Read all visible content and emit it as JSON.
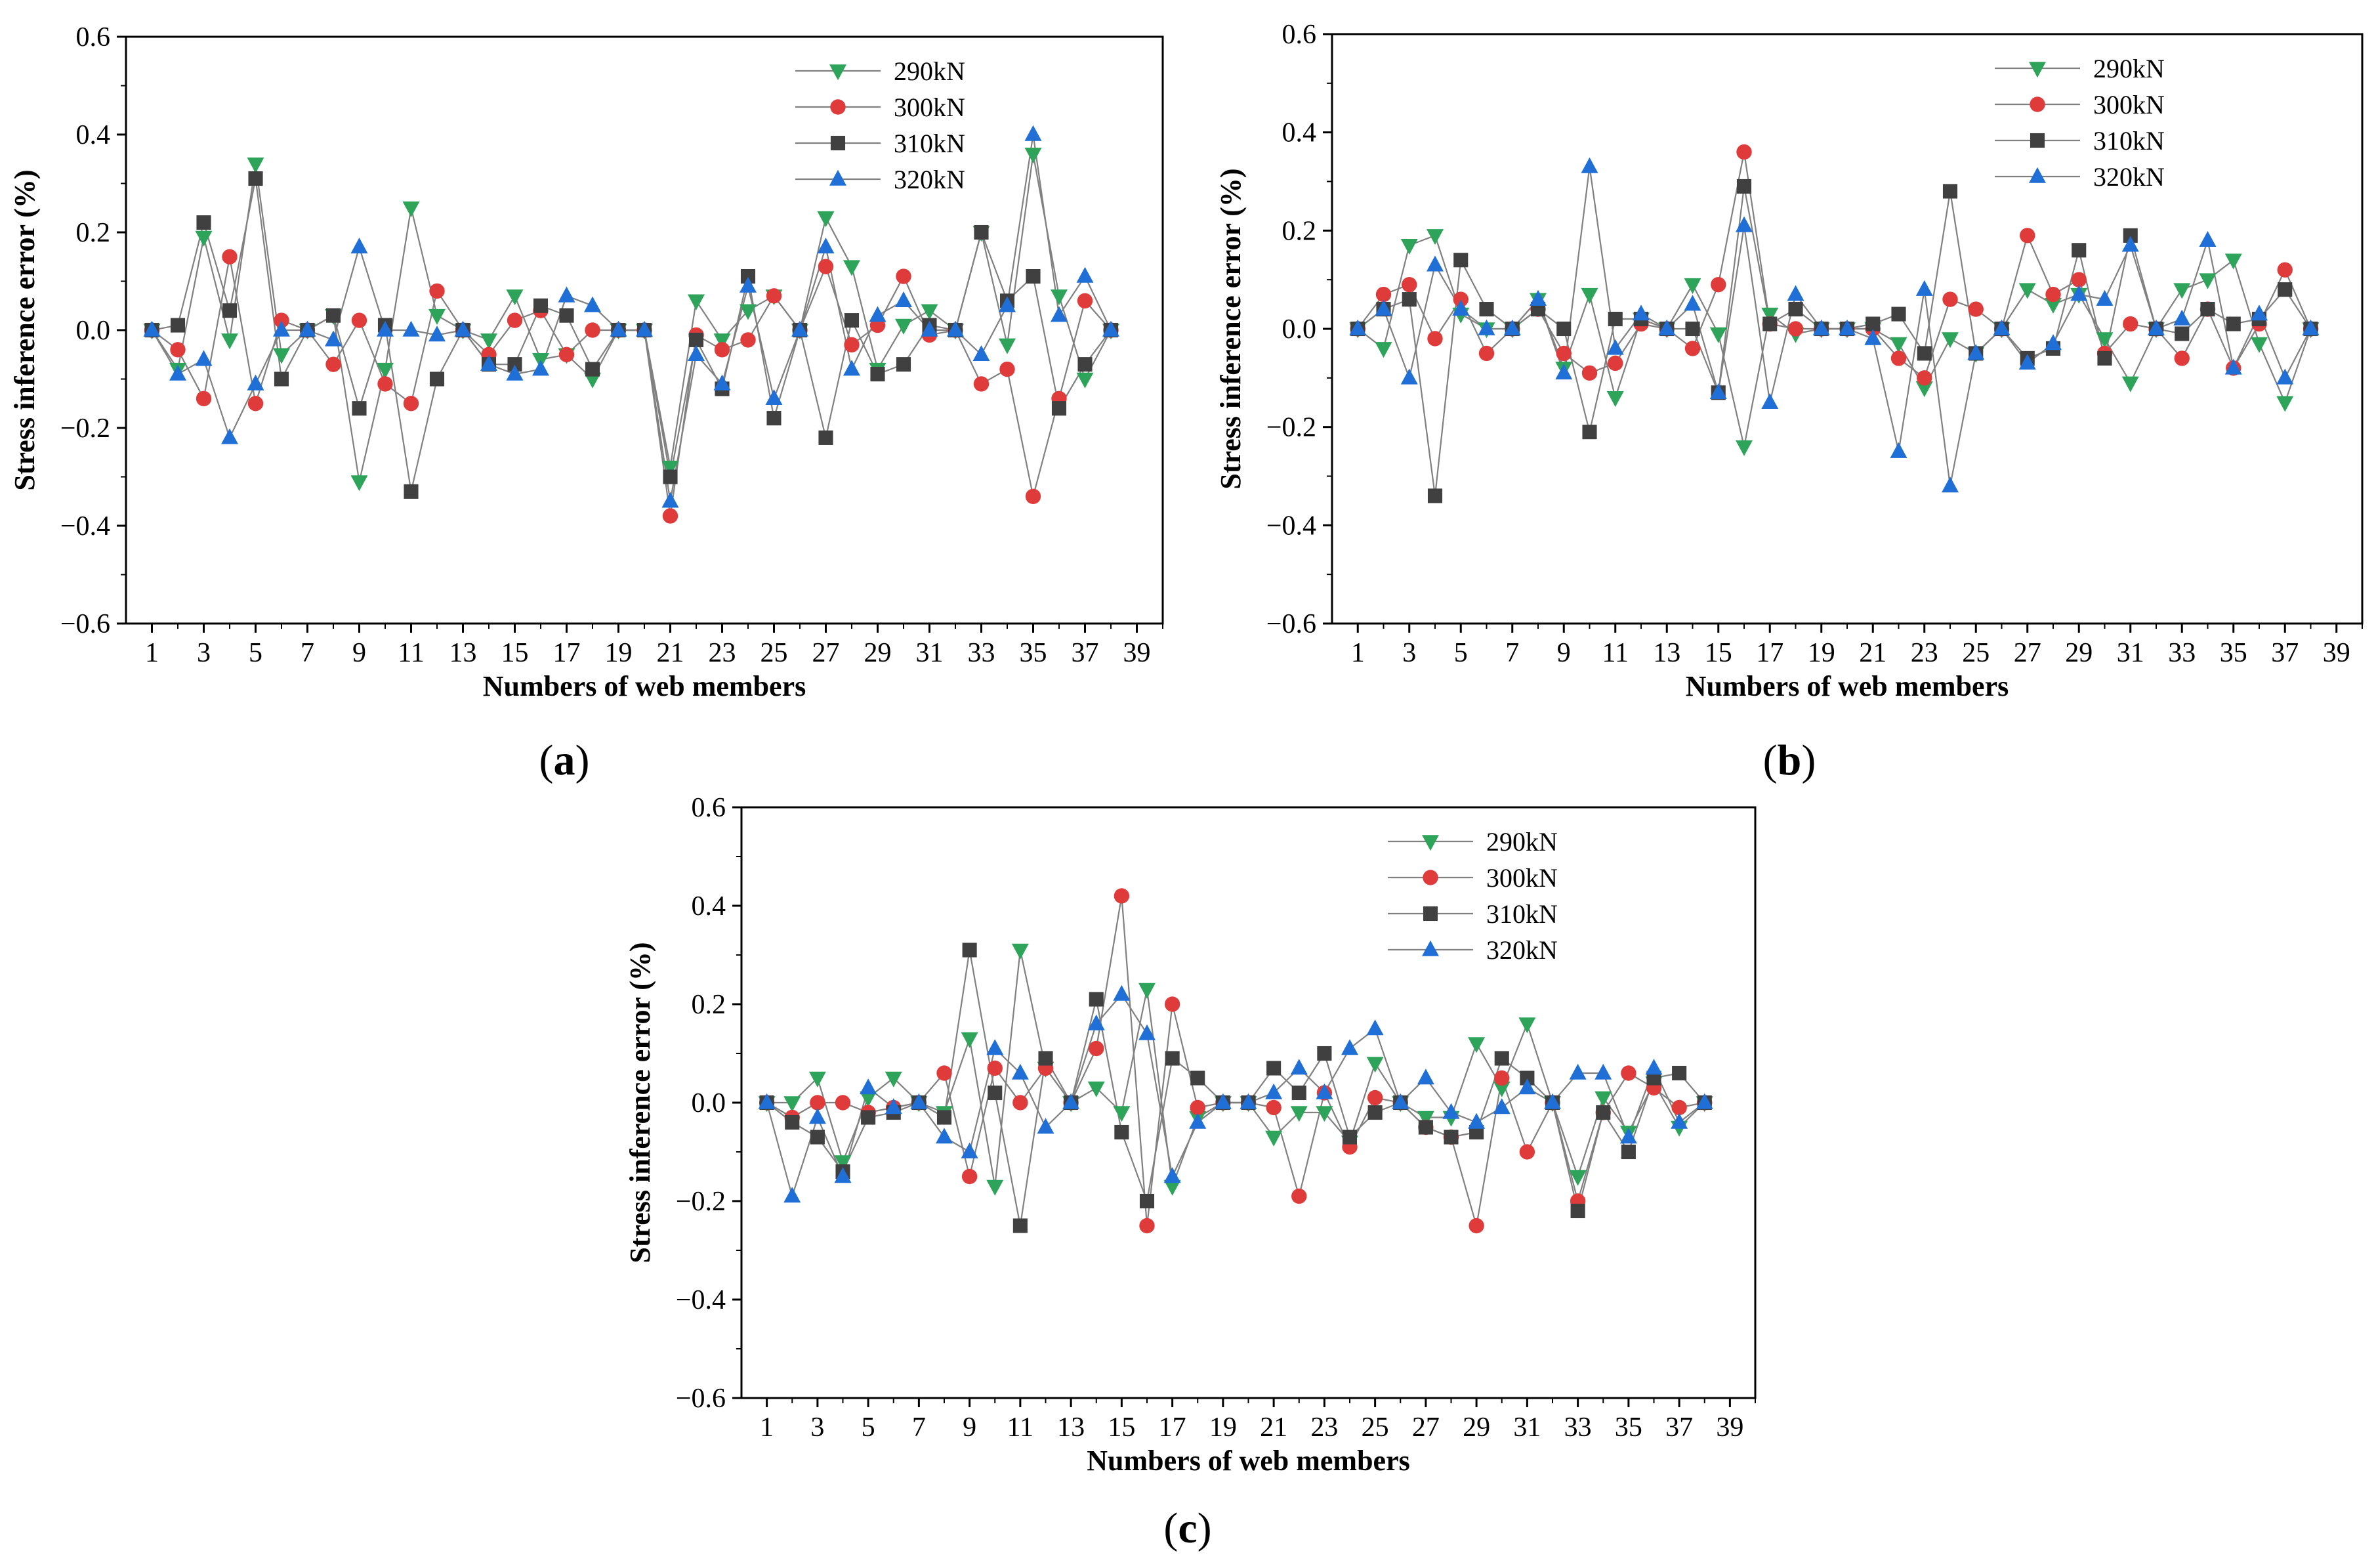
{
  "figure": {
    "colors": {
      "s290": "#2ea35a",
      "s300": "#e03b3b",
      "s310": "#404040",
      "s320": "#1f6fd6",
      "line": "#808080"
    }
  },
  "chart_data": [
    {
      "type": "line",
      "caption": {
        "open": "(",
        "letter": "a",
        "close": ")"
      },
      "xlabel": "Numbers of web members",
      "ylabel": "Stress inference error (%)",
      "ylim": [
        -0.6,
        0.6
      ],
      "xlim": [
        0,
        40
      ],
      "yticks": [
        "0.6",
        "0.4",
        "0.2",
        "0.0",
        "−0.2",
        "−0.4",
        "−0.6"
      ],
      "xticks": [
        "1",
        "3",
        "5",
        "7",
        "9",
        "11",
        "13",
        "15",
        "17",
        "19",
        "21",
        "23",
        "25",
        "27",
        "29",
        "31",
        "33",
        "35",
        "37",
        "39"
      ],
      "x": [
        1,
        2,
        3,
        4,
        5,
        6,
        7,
        8,
        9,
        10,
        11,
        12,
        13,
        14,
        15,
        16,
        17,
        18,
        19,
        20,
        21,
        22,
        23,
        24,
        25,
        26,
        27,
        28,
        29,
        30,
        31,
        32,
        33,
        34,
        35,
        36,
        37,
        38
      ],
      "legend_position": "top-right",
      "series": [
        {
          "name": "290kN",
          "marker": "triangle-down",
          "values": [
            0,
            -0.08,
            0.19,
            -0.02,
            0.34,
            -0.05,
            0,
            0.03,
            -0.31,
            -0.08,
            0.25,
            0.03,
            0,
            -0.02,
            0.07,
            -0.06,
            -0.05,
            -0.1,
            0,
            0,
            -0.28,
            0.06,
            -0.02,
            0.04,
            0.07,
            0,
            0.23,
            0.13,
            -0.08,
            0.01,
            0.04,
            0,
            0.2,
            -0.03,
            0.36,
            0.07,
            -0.1,
            0
          ]
        },
        {
          "name": "300kN",
          "marker": "circle",
          "values": [
            0,
            -0.04,
            -0.14,
            0.15,
            -0.15,
            0.02,
            0,
            -0.07,
            0.02,
            -0.11,
            -0.15,
            0.08,
            0,
            -0.05,
            0.02,
            0.04,
            -0.05,
            0,
            0,
            0,
            -0.38,
            -0.01,
            -0.04,
            -0.02,
            0.07,
            0,
            0.13,
            -0.03,
            0.01,
            0.11,
            -0.01,
            0,
            -0.11,
            -0.08,
            -0.34,
            -0.14,
            0.06,
            0
          ]
        },
        {
          "name": "310kN",
          "marker": "square",
          "values": [
            0,
            0.01,
            0.22,
            0.04,
            0.31,
            -0.1,
            0,
            0.03,
            -0.16,
            0.01,
            -0.33,
            -0.1,
            0,
            -0.07,
            -0.07,
            0.05,
            0.03,
            -0.08,
            0,
            0,
            -0.3,
            -0.02,
            -0.12,
            0.11,
            -0.18,
            0,
            -0.22,
            0.02,
            -0.09,
            -0.07,
            0.01,
            0,
            0.2,
            0.06,
            0.11,
            -0.16,
            -0.07,
            0
          ]
        },
        {
          "name": "320kN",
          "marker": "triangle-up",
          "values": [
            0,
            -0.09,
            -0.06,
            -0.22,
            -0.11,
            0,
            0,
            -0.02,
            0.17,
            0,
            0,
            -0.01,
            0,
            -0.07,
            -0.09,
            -0.08,
            0.07,
            0.05,
            0,
            0,
            -0.35,
            -0.05,
            -0.11,
            0.09,
            -0.14,
            0,
            0.17,
            -0.08,
            0.03,
            0.06,
            0,
            0,
            -0.05,
            0.05,
            0.4,
            0.03,
            0.11,
            0
          ]
        }
      ]
    },
    {
      "type": "line",
      "caption": {
        "open": "(",
        "letter": "b",
        "close": ")"
      },
      "xlabel": "Numbers of web members",
      "ylabel": "Stress inference error (%)",
      "ylim": [
        -0.6,
        0.6
      ],
      "xlim": [
        0,
        40
      ],
      "yticks": [
        "0.6",
        "0.4",
        "0.2",
        "0.0",
        "−0.2",
        "−0.4",
        "−0.6"
      ],
      "xticks": [
        "1",
        "3",
        "5",
        "7",
        "9",
        "11",
        "13",
        "15",
        "17",
        "19",
        "21",
        "23",
        "25",
        "27",
        "29",
        "31",
        "33",
        "35",
        "37",
        "39"
      ],
      "x": [
        1,
        2,
        3,
        4,
        5,
        6,
        7,
        8,
        9,
        10,
        11,
        12,
        13,
        14,
        15,
        16,
        17,
        18,
        19,
        20,
        21,
        22,
        23,
        24,
        25,
        26,
        27,
        28,
        29,
        30,
        31,
        32,
        33,
        34,
        35,
        36,
        37,
        38
      ],
      "legend_position": "top-right",
      "series": [
        {
          "name": "290kN",
          "marker": "triangle-down",
          "values": [
            0,
            -0.04,
            0.17,
            0.19,
            0.03,
            0,
            0,
            0.06,
            -0.08,
            0.07,
            -0.14,
            0.02,
            0,
            0.09,
            -0.01,
            -0.24,
            0.03,
            -0.01,
            0,
            0,
            0,
            -0.03,
            -0.12,
            -0.02,
            -0.05,
            0,
            0.08,
            0.05,
            0.07,
            -0.02,
            -0.11,
            0,
            0.08,
            0.1,
            0.14,
            -0.03,
            -0.15,
            0
          ]
        },
        {
          "name": "300kN",
          "marker": "circle",
          "values": [
            0,
            0.07,
            0.09,
            -0.02,
            0.06,
            -0.05,
            0,
            0.04,
            -0.05,
            -0.09,
            -0.07,
            0.01,
            0,
            -0.04,
            0.09,
            0.36,
            0.01,
            0,
            0,
            0,
            0,
            -0.06,
            -0.1,
            0.06,
            0.04,
            0,
            0.19,
            0.07,
            0.1,
            -0.05,
            0.01,
            0,
            -0.06,
            0.04,
            -0.08,
            0.01,
            0.12,
            0
          ]
        },
        {
          "name": "310kN",
          "marker": "square",
          "values": [
            0,
            0.04,
            0.06,
            -0.34,
            0.14,
            0.04,
            0,
            0.04,
            0,
            -0.21,
            0.02,
            0.02,
            0,
            0,
            -0.13,
            0.29,
            0.01,
            0.04,
            0,
            0,
            0.01,
            0.03,
            -0.05,
            0.28,
            -0.05,
            0,
            -0.06,
            -0.04,
            0.16,
            -0.06,
            0.19,
            0,
            -0.01,
            0.04,
            0.01,
            0.02,
            0.08,
            0
          ]
        },
        {
          "name": "320kN",
          "marker": "triangle-up",
          "values": [
            0,
            0.04,
            -0.1,
            0.13,
            0.04,
            0,
            0,
            0.06,
            -0.09,
            0.33,
            -0.04,
            0.03,
            0,
            0.05,
            -0.13,
            0.21,
            -0.15,
            0.07,
            0,
            0,
            -0.02,
            -0.25,
            0.08,
            -0.32,
            -0.05,
            0,
            -0.07,
            -0.03,
            0.07,
            0.06,
            0.17,
            0,
            0.02,
            0.18,
            -0.08,
            0.03,
            -0.1,
            0
          ]
        }
      ]
    },
    {
      "type": "line",
      "caption": {
        "open": "(",
        "letter": "c",
        "close": ")"
      },
      "xlabel": "Numbers of web members",
      "ylabel": "Stress inference error (%)",
      "ylim": [
        -0.6,
        0.6
      ],
      "xlim": [
        0,
        40
      ],
      "yticks": [
        "0.6",
        "0.4",
        "0.2",
        "0.0",
        "−0.2",
        "−0.4",
        "−0.6"
      ],
      "xticks": [
        "1",
        "3",
        "5",
        "7",
        "9",
        "11",
        "13",
        "15",
        "17",
        "19",
        "21",
        "23",
        "25",
        "27",
        "29",
        "31",
        "33",
        "35",
        "37",
        "39"
      ],
      "x": [
        1,
        2,
        3,
        4,
        5,
        6,
        7,
        8,
        9,
        10,
        11,
        12,
        13,
        14,
        15,
        16,
        17,
        18,
        19,
        20,
        21,
        22,
        23,
        24,
        25,
        26,
        27,
        28,
        29,
        30,
        31,
        32,
        33,
        34,
        35,
        36,
        37,
        38
      ],
      "legend_position": "top-right",
      "series": [
        {
          "name": "290kN",
          "marker": "triangle-down",
          "values": [
            0,
            0,
            0.05,
            -0.12,
            0.01,
            0.05,
            0,
            -0.02,
            0.13,
            -0.17,
            0.31,
            0.07,
            0,
            0.03,
            -0.02,
            0.23,
            -0.17,
            -0.03,
            0,
            0,
            -0.07,
            -0.02,
            -0.02,
            -0.08,
            0.08,
            0,
            -0.03,
            -0.03,
            0.12,
            0.03,
            0.16,
            0,
            -0.15,
            0.01,
            -0.06,
            0.04,
            -0.05,
            0
          ]
        },
        {
          "name": "300kN",
          "marker": "circle",
          "values": [
            0,
            -0.03,
            0,
            0,
            -0.02,
            -0.01,
            0,
            0.06,
            -0.15,
            0.07,
            0,
            0.07,
            0,
            0.11,
            0.42,
            -0.25,
            0.2,
            -0.01,
            0,
            0,
            -0.01,
            -0.19,
            0.02,
            -0.09,
            0.01,
            0,
            -0.05,
            -0.07,
            -0.25,
            0.05,
            -0.1,
            0,
            -0.2,
            -0.02,
            0.06,
            0.03,
            -0.01,
            0
          ]
        },
        {
          "name": "310kN",
          "marker": "square",
          "values": [
            0,
            -0.04,
            -0.07,
            -0.14,
            -0.03,
            -0.02,
            0,
            -0.03,
            0.31,
            0.02,
            -0.25,
            0.09,
            0,
            0.21,
            -0.06,
            -0.2,
            0.09,
            0.05,
            0,
            0,
            0.07,
            0.02,
            0.1,
            -0.07,
            -0.02,
            0,
            -0.05,
            -0.07,
            -0.06,
            0.09,
            0.05,
            0,
            -0.22,
            -0.02,
            -0.1,
            0.05,
            0.06,
            0
          ]
        },
        {
          "name": "320kN",
          "marker": "triangle-up",
          "values": [
            0,
            -0.19,
            -0.03,
            -0.15,
            0.03,
            -0.01,
            0,
            -0.07,
            -0.1,
            0.11,
            0.06,
            -0.05,
            0,
            0.16,
            0.22,
            0.14,
            -0.15,
            -0.04,
            0,
            0,
            0.02,
            0.07,
            0.02,
            0.11,
            0.15,
            0,
            0.05,
            -0.02,
            -0.04,
            -0.01,
            0.03,
            0,
            0.06,
            0.06,
            -0.07,
            0.07,
            -0.04,
            0
          ]
        }
      ]
    }
  ]
}
